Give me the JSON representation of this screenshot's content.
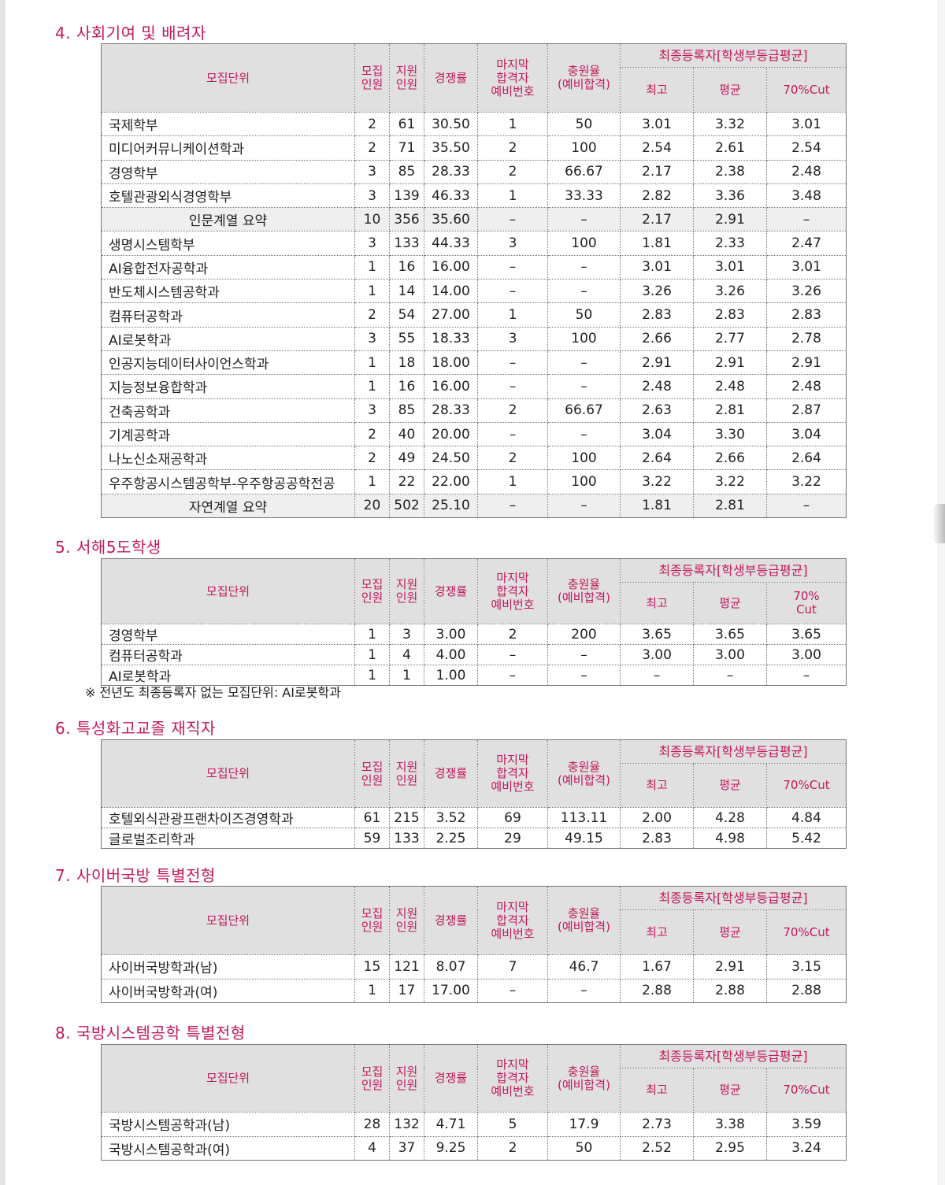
{
  "header_labels": {
    "unit": "모집단위",
    "quota": "모집\n인원",
    "applicants": "지원\n인원",
    "ratio": "경쟁률",
    "last_waitlist": "마지막\n합격자\n예비번호",
    "fill_rate": "충원율\n(예비합격)",
    "final_group": "최종등록자[학생부등급평균]",
    "max": "최고",
    "avg": "평균",
    "cut70": "70%Cut",
    "cut70_wrapped": "70%\nCut"
  },
  "sections": [
    {
      "title": "4. 사회기여 및 배려자",
      "rows": [
        {
          "unit": "국제학부",
          "quota": "2",
          "applicants": "61",
          "ratio": "30.50",
          "last": "1",
          "fill": "50",
          "max": "3.01",
          "avg": "3.32",
          "cut": "3.01"
        },
        {
          "unit": "미디어커뮤니케이션학과",
          "quota": "2",
          "applicants": "71",
          "ratio": "35.50",
          "last": "2",
          "fill": "100",
          "max": "2.54",
          "avg": "2.61",
          "cut": "2.54"
        },
        {
          "unit": "경영학부",
          "quota": "3",
          "applicants": "85",
          "ratio": "28.33",
          "last": "2",
          "fill": "66.67",
          "max": "2.17",
          "avg": "2.38",
          "cut": "2.48"
        },
        {
          "unit": "호텔관광외식경영학부",
          "quota": "3",
          "applicants": "139",
          "ratio": "46.33",
          "last": "1",
          "fill": "33.33",
          "max": "2.82",
          "avg": "3.36",
          "cut": "3.48"
        },
        {
          "unit": "인문계열 요약",
          "quota": "10",
          "applicants": "356",
          "ratio": "35.60",
          "last": "–",
          "fill": "–",
          "max": "2.17",
          "avg": "2.91",
          "cut": "–",
          "summary": true
        },
        {
          "unit": "생명시스템학부",
          "quota": "3",
          "applicants": "133",
          "ratio": "44.33",
          "last": "3",
          "fill": "100",
          "max": "1.81",
          "avg": "2.33",
          "cut": "2.47"
        },
        {
          "unit": "AI융합전자공학과",
          "quota": "1",
          "applicants": "16",
          "ratio": "16.00",
          "last": "–",
          "fill": "–",
          "max": "3.01",
          "avg": "3.01",
          "cut": "3.01"
        },
        {
          "unit": "반도체시스템공학과",
          "quota": "1",
          "applicants": "14",
          "ratio": "14.00",
          "last": "–",
          "fill": "–",
          "max": "3.26",
          "avg": "3.26",
          "cut": "3.26"
        },
        {
          "unit": "컴퓨터공학과",
          "quota": "2",
          "applicants": "54",
          "ratio": "27.00",
          "last": "1",
          "fill": "50",
          "max": "2.83",
          "avg": "2.83",
          "cut": "2.83"
        },
        {
          "unit": "AI로봇학과",
          "quota": "3",
          "applicants": "55",
          "ratio": "18.33",
          "last": "3",
          "fill": "100",
          "max": "2.66",
          "avg": "2.77",
          "cut": "2.78"
        },
        {
          "unit": "인공지능데이터사이언스학과",
          "quota": "1",
          "applicants": "18",
          "ratio": "18.00",
          "last": "–",
          "fill": "–",
          "max": "2.91",
          "avg": "2.91",
          "cut": "2.91"
        },
        {
          "unit": "지능정보융합학과",
          "quota": "1",
          "applicants": "16",
          "ratio": "16.00",
          "last": "–",
          "fill": "–",
          "max": "2.48",
          "avg": "2.48",
          "cut": "2.48"
        },
        {
          "unit": "건축공학과",
          "quota": "3",
          "applicants": "85",
          "ratio": "28.33",
          "last": "2",
          "fill": "66.67",
          "max": "2.63",
          "avg": "2.81",
          "cut": "2.87"
        },
        {
          "unit": "기계공학과",
          "quota": "2",
          "applicants": "40",
          "ratio": "20.00",
          "last": "–",
          "fill": "–",
          "max": "3.04",
          "avg": "3.30",
          "cut": "3.04"
        },
        {
          "unit": "나노신소재공학과",
          "quota": "2",
          "applicants": "49",
          "ratio": "24.50",
          "last": "2",
          "fill": "100",
          "max": "2.64",
          "avg": "2.66",
          "cut": "2.64"
        },
        {
          "unit": "우주항공시스템공학부-우주항공공학전공",
          "quota": "1",
          "applicants": "22",
          "ratio": "22.00",
          "last": "1",
          "fill": "100",
          "max": "3.22",
          "avg": "3.22",
          "cut": "3.22"
        },
        {
          "unit": "자연계열 요약",
          "quota": "20",
          "applicants": "502",
          "ratio": "25.10",
          "last": "–",
          "fill": "–",
          "max": "1.81",
          "avg": "2.81",
          "cut": "–",
          "summary": true
        }
      ]
    },
    {
      "title": "5. 서해5도학생",
      "cut_wrapped": true,
      "rows": [
        {
          "unit": "경영학부",
          "quota": "1",
          "applicants": "3",
          "ratio": "3.00",
          "last": "2",
          "fill": "200",
          "max": "3.65",
          "avg": "3.65",
          "cut": "3.65"
        },
        {
          "unit": "컴퓨터공학과",
          "quota": "1",
          "applicants": "4",
          "ratio": "4.00",
          "last": "–",
          "fill": "–",
          "max": "3.00",
          "avg": "3.00",
          "cut": "3.00"
        },
        {
          "unit": "AI로봇학과",
          "quota": "1",
          "applicants": "1",
          "ratio": "1.00",
          "last": "–",
          "fill": "–",
          "max": "–",
          "avg": "–",
          "cut": "–"
        }
      ],
      "note": "※ 전년도 최종등록자 없는 모집단위: AI로봇학과"
    },
    {
      "title": "6. 특성화고교졸 재직자",
      "rows": [
        {
          "unit": "호텔외식관광프랜차이즈경영학과",
          "quota": "61",
          "applicants": "215",
          "ratio": "3.52",
          "last": "69",
          "fill": "113.11",
          "max": "2.00",
          "avg": "4.28",
          "cut": "4.84"
        },
        {
          "unit": "글로벌조리학과",
          "quota": "59",
          "applicants": "133",
          "ratio": "2.25",
          "last": "29",
          "fill": "49.15",
          "max": "2.83",
          "avg": "4.98",
          "cut": "5.42"
        }
      ]
    },
    {
      "title": "7. 사이버국방 특별전형",
      "rows": [
        {
          "unit": "사이버국방학과(남)",
          "quota": "15",
          "applicants": "121",
          "ratio": "8.07",
          "last": "7",
          "fill": "46.7",
          "max": "1.67",
          "avg": "2.91",
          "cut": "3.15"
        },
        {
          "unit": "사이버국방학과(여)",
          "quota": "1",
          "applicants": "17",
          "ratio": "17.00",
          "last": "–",
          "fill": "–",
          "max": "2.88",
          "avg": "2.88",
          "cut": "2.88"
        }
      ]
    },
    {
      "title": "8. 국방시스템공학 특별전형",
      "rows": [
        {
          "unit": "국방시스템공학과(남)",
          "quota": "28",
          "applicants": "132",
          "ratio": "4.71",
          "last": "5",
          "fill": "17.9",
          "max": "2.73",
          "avg": "3.38",
          "cut": "3.59"
        },
        {
          "unit": "국방시스템공학과(여)",
          "quota": "4",
          "applicants": "37",
          "ratio": "9.25",
          "last": "2",
          "fill": "50",
          "max": "2.52",
          "avg": "2.95",
          "cut": "3.24"
        }
      ]
    }
  ]
}
